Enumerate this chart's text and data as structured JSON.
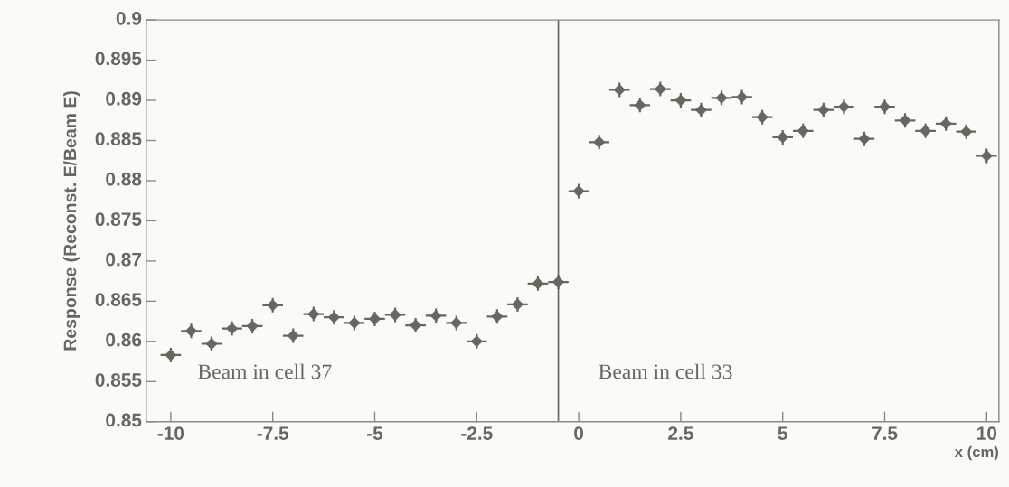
{
  "chart_data": {
    "type": "scatter",
    "xlabel": "x (cm)",
    "ylabel": "Response (Reconst. E/Beam E)",
    "x": [
      -10,
      -9.5,
      -9,
      -8.5,
      -8,
      -7.5,
      -7,
      -6.5,
      -6,
      -5.5,
      -5,
      -4.5,
      -4,
      -3.5,
      -3,
      -2.5,
      -2,
      -1.5,
      -1,
      -0.5,
      0,
      0.5,
      1,
      1.5,
      2,
      2.5,
      3,
      3.5,
      4,
      4.5,
      5,
      5.5,
      6,
      6.5,
      7,
      7.5,
      8,
      8.5,
      9,
      9.5,
      10
    ],
    "values": [
      0.8583,
      0.8613,
      0.8597,
      0.8616,
      0.8619,
      0.8645,
      0.8607,
      0.8634,
      0.863,
      0.8623,
      0.8628,
      0.8633,
      0.862,
      0.8632,
      0.8623,
      0.86,
      0.8631,
      0.8646,
      0.8672,
      0.8674,
      0.8787,
      0.8848,
      0.8913,
      0.8894,
      0.8914,
      0.89,
      0.8888,
      0.8903,
      0.8904,
      0.8879,
      0.8854,
      0.8862,
      0.8888,
      0.8892,
      0.8852,
      0.8892,
      0.8875,
      0.8862,
      0.8871,
      0.8861,
      0.8831
    ],
    "errors": [
      0.0009,
      0.0009,
      0.0009,
      0.0009,
      0.0009,
      0.0009,
      0.0009,
      0.0009,
      0.0009,
      0.0009,
      0.0009,
      0.0009,
      0.0009,
      0.0009,
      0.0009,
      0.0009,
      0.0009,
      0.0009,
      0.0009,
      0.0009,
      0.0009,
      0.0009,
      0.0009,
      0.0009,
      0.0009,
      0.0009,
      0.0009,
      0.0009,
      0.0009,
      0.0009,
      0.0009,
      0.0009,
      0.0009,
      0.0009,
      0.0009,
      0.0009,
      0.0009,
      0.0009,
      0.0009,
      0.0009,
      0.0009
    ],
    "xerrors": [
      0.25,
      0.25,
      0.25,
      0.25,
      0.25,
      0.25,
      0.25,
      0.25,
      0.25,
      0.25,
      0.25,
      0.25,
      0.25,
      0.25,
      0.25,
      0.25,
      0.25,
      0.25,
      0.25,
      0.25,
      0.25,
      0.25,
      0.25,
      0.25,
      0.25,
      0.25,
      0.25,
      0.25,
      0.25,
      0.25,
      0.25,
      0.25,
      0.25,
      0.25,
      0.25,
      0.25,
      0.25,
      0.25,
      0.25,
      0.25,
      0.25
    ],
    "color": "#66675f",
    "marker": "diamond",
    "xlim": [
      -10.6,
      10.3
    ],
    "ylim": [
      0.85,
      0.9
    ],
    "xticks": [
      -10,
      -7.5,
      -5,
      -2.5,
      0,
      2.5,
      5,
      7.5,
      10
    ],
    "yticks": [
      0.85,
      0.855,
      0.86,
      0.865,
      0.87,
      0.875,
      0.88,
      0.885,
      0.89,
      0.895,
      0.9
    ],
    "ref_lines": [
      {
        "axis": "x",
        "value": -0.5,
        "color": "#66675f"
      }
    ],
    "annotations": [
      "Beam in cell 37",
      "Beam in cell 33"
    ],
    "grid": false,
    "legend": false
  }
}
